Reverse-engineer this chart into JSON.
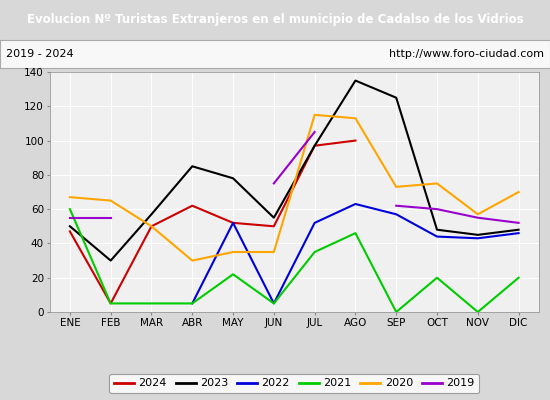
{
  "title": "Evolucion Nº Turistas Extranjeros en el municipio de Cadalso de los Vidrios",
  "title_color": "#ffffff",
  "title_bg": "#4472c4",
  "subtitle_left": "2019 - 2024",
  "subtitle_right": "http://www.foro-ciudad.com",
  "months": [
    "ENE",
    "FEB",
    "MAR",
    "ABR",
    "MAY",
    "JUN",
    "JUL",
    "AGO",
    "SEP",
    "OCT",
    "NOV",
    "DIC"
  ],
  "ylim": [
    0,
    140
  ],
  "yticks": [
    0,
    20,
    40,
    60,
    80,
    100,
    120,
    140
  ],
  "series": {
    "2024": {
      "color": "#cc0000",
      "values": [
        47,
        5,
        50,
        62,
        52,
        50,
        97,
        100,
        null,
        null,
        null,
        null
      ]
    },
    "2023": {
      "color": "#000000",
      "values": [
        50,
        30,
        57,
        85,
        78,
        55,
        97,
        135,
        125,
        48,
        45,
        48
      ]
    },
    "2022": {
      "color": "#0000dd",
      "values": [
        null,
        null,
        null,
        5,
        52,
        5,
        52,
        63,
        57,
        44,
        43,
        46
      ]
    },
    "2021": {
      "color": "#00cc00",
      "values": [
        60,
        5,
        5,
        5,
        22,
        5,
        35,
        46,
        0,
        20,
        0,
        20
      ]
    },
    "2020": {
      "color": "#ffa500",
      "values": [
        67,
        65,
        50,
        30,
        35,
        35,
        115,
        113,
        73,
        75,
        57,
        70
      ]
    },
    "2019": {
      "color": "#9900cc",
      "values": [
        55,
        55,
        null,
        null,
        null,
        75,
        105,
        null,
        62,
        60,
        55,
        52
      ]
    }
  },
  "legend_order": [
    "2024",
    "2023",
    "2022",
    "2021",
    "2020",
    "2019"
  ],
  "grid_color": "#ffffff",
  "plot_bg": "#f0f0f0",
  "outer_bg": "#d8d8d8"
}
